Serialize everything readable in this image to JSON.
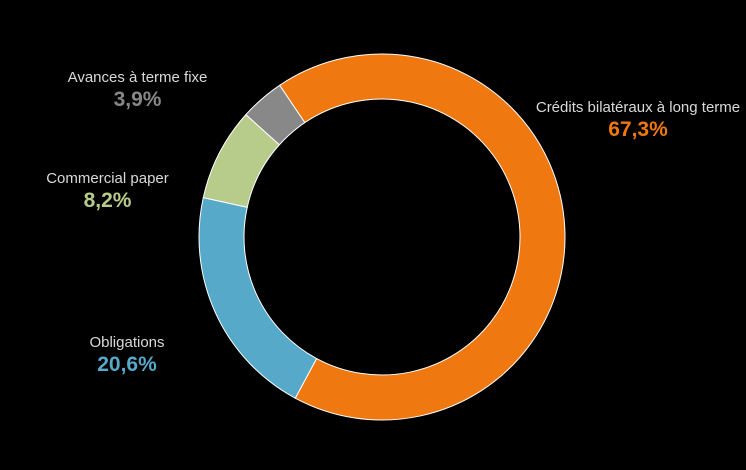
{
  "chart_data": {
    "type": "pie",
    "donut": true,
    "title": "",
    "slices": [
      {
        "label": "Crédits bilatéraux à long terme",
        "value": 67.3,
        "display": "67,3%",
        "color": "#f07810"
      },
      {
        "label": "Obligations",
        "value": 20.6,
        "display": "20,6%",
        "color": "#57a9c9"
      },
      {
        "label": "Commercial paper",
        "value": 8.2,
        "display": "8,2%",
        "color": "#b7cc8a"
      },
      {
        "label": "Avances à terme fixe",
        "value": 3.9,
        "display": "3,9%",
        "color": "#888888"
      }
    ],
    "legend": "none",
    "grid": false
  }
}
